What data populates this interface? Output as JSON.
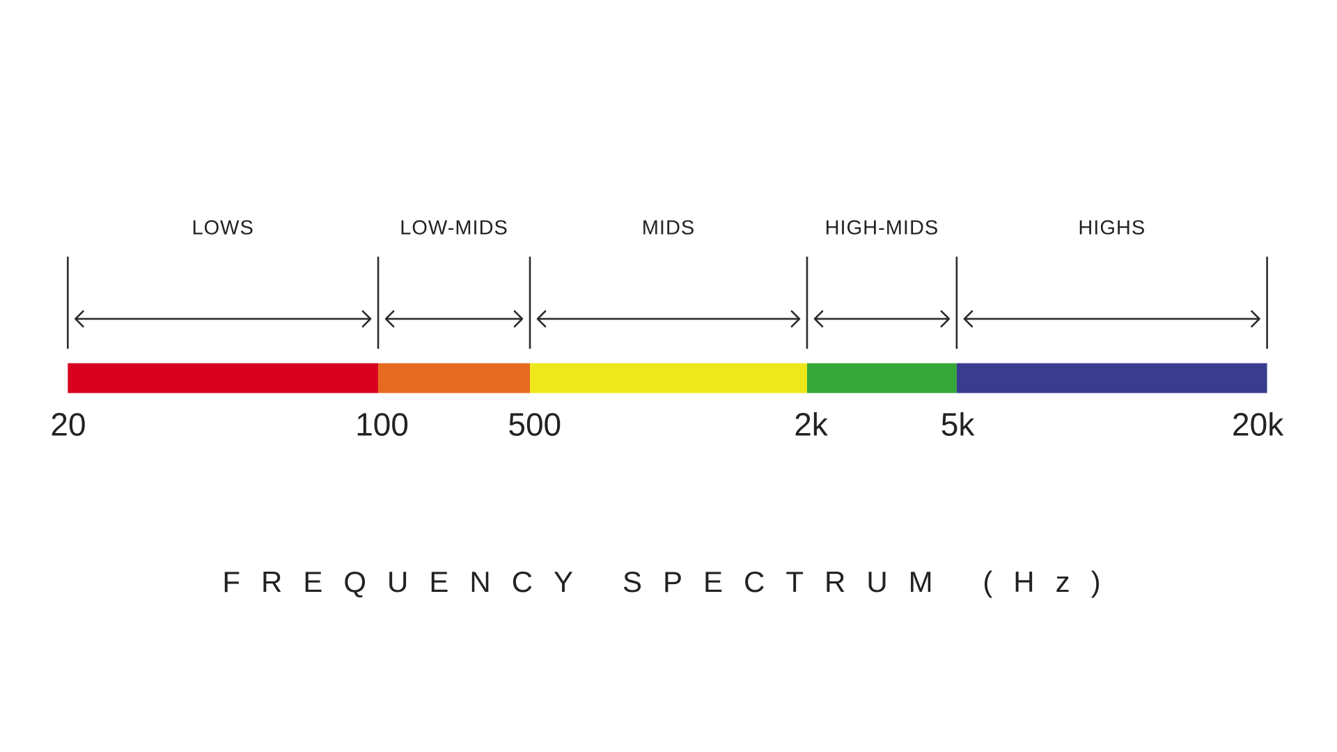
{
  "chart_data": {
    "type": "bar",
    "scale": "log",
    "title": "FREQUENCY SPECTRUM (Hz)",
    "boundaries": [
      20,
      100,
      500,
      2000,
      5000,
      20000
    ],
    "tick_labels": [
      "20",
      "100",
      "500",
      "2k",
      "5k",
      "20k"
    ],
    "bands": [
      {
        "name": "LOWS",
        "from": 20,
        "to": 100,
        "color": "#d7001f"
      },
      {
        "name": "LOW-MIDS",
        "from": 100,
        "to": 500,
        "color": "#e66a20"
      },
      {
        "name": "MIDS",
        "from": 500,
        "to": 2000,
        "color": "#eee81a"
      },
      {
        "name": "HIGH-MIDS",
        "from": 2000,
        "to": 5000,
        "color": "#36a83a"
      },
      {
        "name": "HIGHS",
        "from": 5000,
        "to": 20000,
        "color": "#3a3c8f"
      }
    ]
  }
}
